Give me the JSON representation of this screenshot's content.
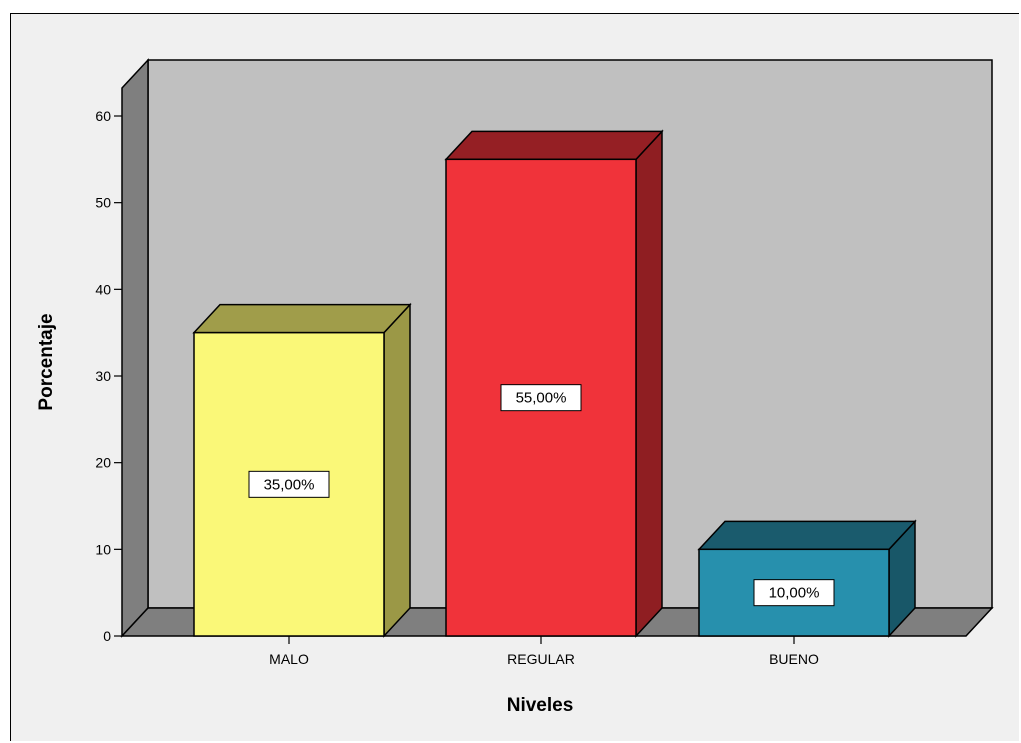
{
  "chart_data": {
    "type": "bar",
    "categories": [
      "MALO",
      "REGULAR",
      "BUENO"
    ],
    "values": [
      35,
      55,
      10
    ],
    "data_labels": [
      "35,00%",
      "55,00%",
      "10,00%"
    ],
    "colors": [
      "#faf878",
      "#f0333a",
      "#2790ad"
    ],
    "side_colors": [
      "#9b9846",
      "#8f1e22",
      "#185768"
    ],
    "top_colors": [
      "#a09d4a",
      "#951f24",
      "#1a5b6d"
    ],
    "xlabel": "Niveles",
    "ylabel": "Porcentaje",
    "ylim": [
      0,
      60
    ],
    "yticks": [
      0,
      10,
      20,
      30,
      40,
      50,
      60
    ],
    "grid": false,
    "legend": "none",
    "style": "3d-bar"
  }
}
